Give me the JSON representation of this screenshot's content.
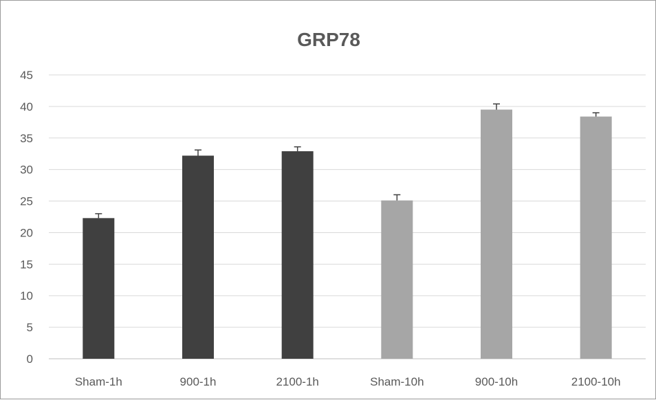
{
  "chart_data": {
    "type": "bar",
    "title": "GRP78",
    "xlabel": "",
    "ylabel": "",
    "categories": [
      "Sham-1h",
      "900-1h",
      "2100-1h",
      "Sham-10h",
      "900-10h",
      "2100-10h"
    ],
    "values": [
      22.3,
      32.2,
      32.9,
      25.1,
      39.5,
      38.4
    ],
    "error": [
      0.7,
      0.9,
      0.7,
      0.9,
      0.9,
      0.6
    ],
    "bar_colors": [
      "#404040",
      "#404040",
      "#404040",
      "#a6a6a6",
      "#a6a6a6",
      "#a6a6a6"
    ],
    "ylim": [
      0,
      45
    ],
    "yticks": [
      0,
      5,
      10,
      15,
      20,
      25,
      30,
      35,
      40,
      45
    ],
    "grid": true,
    "legend": "none"
  }
}
